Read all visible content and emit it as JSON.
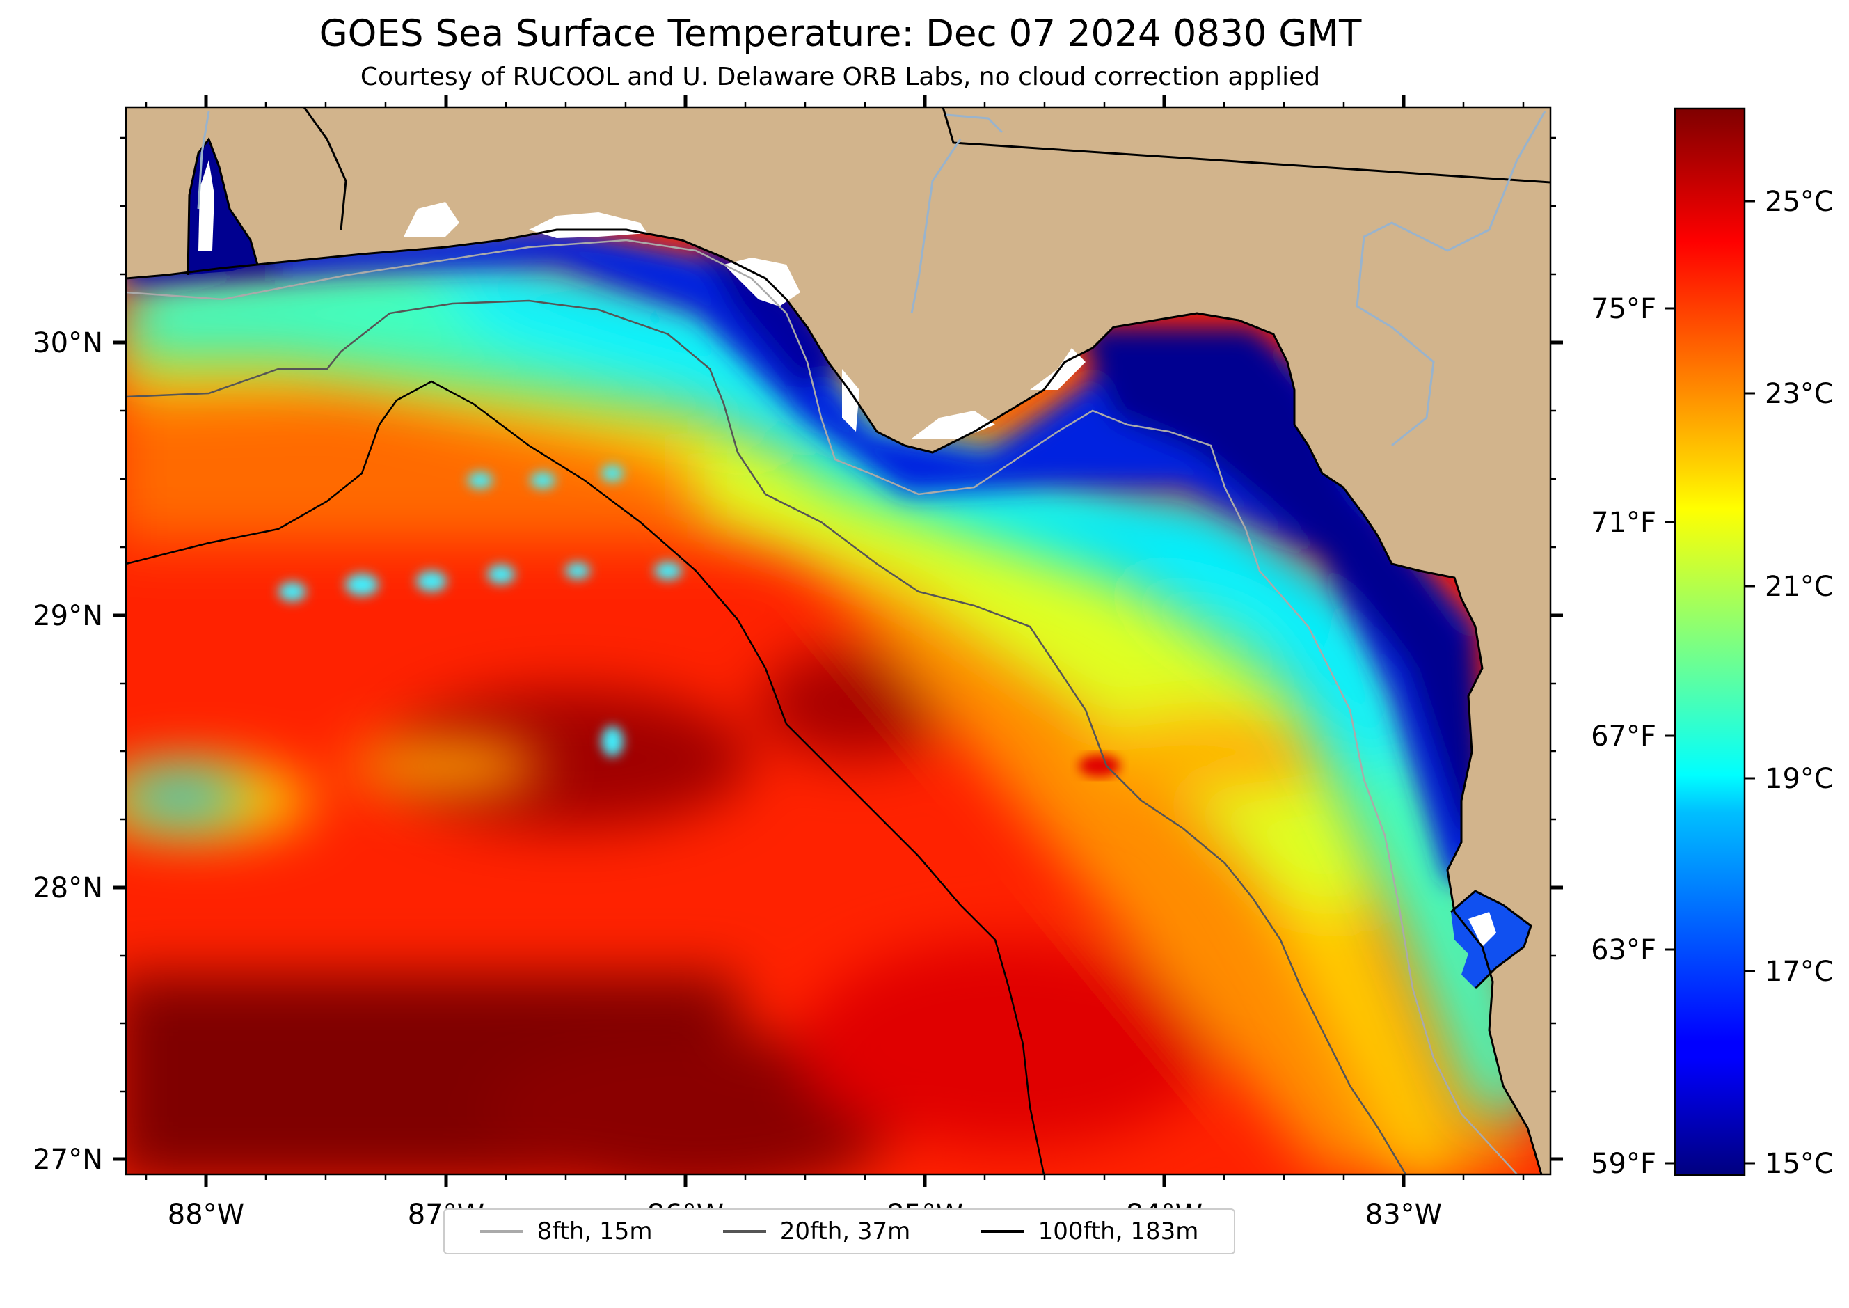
{
  "title": "GOES Sea Surface Temperature: Dec 07 2024 0830 GMT",
  "subtitle": "Courtesy of RUCOOL and U. Delaware ORB Labs, no cloud correction applied",
  "colors": {
    "land": "#D2B48C",
    "coast": "#000000",
    "river": "#99B3CC",
    "isobath_8fth": "#aaaaaa",
    "isobath_20fth": "#555555",
    "isobath_100fth": "#000000"
  },
  "map": {
    "lon_range": [
      -88.33,
      -82.38
    ],
    "lat_range": [
      26.93,
      30.85
    ],
    "lon_ticks": [
      "88°W",
      "87°W",
      "86°W",
      "85°W",
      "84°W",
      "83°W"
    ],
    "lat_ticks": [
      "30°N",
      "29°N",
      "28°N",
      "27°N"
    ]
  },
  "colorbar": {
    "colormap": "jet",
    "range_c": [
      14.8,
      26.2
    ],
    "celsius_ticks": [
      "25°C",
      "23°C",
      "21°C",
      "19°C",
      "17°C",
      "15°C"
    ],
    "fahrenheit_ticks": [
      "75°F",
      "71°F",
      "67°F",
      "63°F",
      "59°F"
    ]
  },
  "legend": {
    "placement": "bottom-center",
    "items": [
      {
        "label": "8fth, 15m",
        "color": "#aaaaaa"
      },
      {
        "label": "20fth, 37m",
        "color": "#555555"
      },
      {
        "label": "100fth, 183m",
        "color": "#000000"
      }
    ]
  }
}
